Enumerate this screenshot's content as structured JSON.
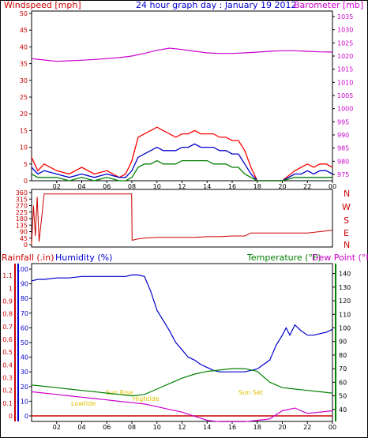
{
  "header": {
    "windspeed_label": "Windspeed [mph]",
    "title": "24 hour graph day : January 19 2012",
    "barometer_label": "Barometer [mb]"
  },
  "lower_header": {
    "rainfall_label": "Rainfall (.in)",
    "humidity_label": "Humidity (%)",
    "temperature_label": "Temperature (°F)",
    "dewpoint_label": "Dew Point (°F)"
  },
  "compass_labels": [
    "N",
    "W",
    "S",
    "E",
    "N"
  ],
  "annotations": {
    "sunrise": "Sun Rise",
    "sunset": "Sun Set",
    "lowtide": "Lowtide",
    "hightide": "Hightide"
  },
  "colors": {
    "wind_gust": "#ff0000",
    "wind_avg": "#0000cc",
    "wind_low": "#008000",
    "barometer": "#cc00cc",
    "direction": "#cc0000",
    "rainfall": "#cc0000",
    "humidity": "#0000cc",
    "temperature": "#008000",
    "dewpoint": "#cc00cc",
    "annotation": "#e0c000"
  },
  "chart_data": [
    {
      "type": "line",
      "name": "wind-barometer",
      "x_ticks": [
        "02",
        "04",
        "06",
        "08",
        "10",
        "12",
        "14",
        "16",
        "18",
        "20",
        "22",
        "00"
      ],
      "y_left_ticks": [
        0,
        5,
        10,
        15,
        20,
        25,
        30,
        35,
        40,
        45,
        50
      ],
      "ylim_left": [
        0,
        50
      ],
      "y_right_ticks": [
        975,
        980,
        985,
        990,
        995,
        1000,
        1005,
        1010,
        1015,
        1020,
        1025,
        1030,
        1035
      ],
      "ylim_right": [
        975,
        1035
      ],
      "xlim": [
        0,
        24
      ],
      "series": [
        {
          "name": "Windspeed gust",
          "axis": "left",
          "x": [
            0,
            0.5,
            1,
            2,
            3,
            4,
            5,
            6,
            7,
            7.5,
            8,
            8.5,
            9,
            9.5,
            10,
            10.5,
            11,
            11.5,
            12,
            12.5,
            13,
            13.5,
            14,
            14.5,
            15,
            15.5,
            16,
            16.5,
            17,
            17.5,
            18,
            19,
            20,
            21,
            21.5,
            22,
            22.5,
            23,
            23.5,
            24
          ],
          "y": [
            7,
            3,
            5,
            3,
            2,
            4,
            2,
            3,
            1,
            2,
            6,
            13,
            14,
            15,
            16,
            15,
            14,
            13,
            14,
            14,
            15,
            14,
            14,
            14,
            13,
            13,
            12,
            12,
            9,
            4,
            0,
            0,
            0,
            3,
            4,
            5,
            4,
            5,
            5,
            4
          ]
        },
        {
          "name": "Windspeed average",
          "axis": "left",
          "x": [
            0,
            0.5,
            1,
            2,
            3,
            4,
            5,
            6,
            7,
            7.5,
            8,
            8.5,
            9,
            9.5,
            10,
            10.5,
            11,
            11.5,
            12,
            12.5,
            13,
            13.5,
            14,
            14.5,
            15,
            15.5,
            16,
            16.5,
            17,
            17.5,
            18,
            19,
            20,
            21,
            21.5,
            22,
            22.5,
            23,
            23.5,
            24
          ],
          "y": [
            4,
            2,
            3,
            2,
            1,
            2,
            1,
            2,
            1,
            1,
            3,
            7,
            8,
            9,
            10,
            9,
            9,
            9,
            10,
            10,
            11,
            10,
            10,
            10,
            9,
            9,
            8,
            8,
            5,
            2,
            0,
            0,
            0,
            2,
            2,
            3,
            2,
            3,
            3,
            2
          ]
        },
        {
          "name": "Windspeed low",
          "axis": "left",
          "x": [
            0,
            0.5,
            1,
            2,
            3,
            4,
            5,
            6,
            7,
            7.5,
            8,
            8.5,
            9,
            9.5,
            10,
            10.5,
            11,
            11.5,
            12,
            12.5,
            13,
            13.5,
            14,
            14.5,
            15,
            15.5,
            16,
            16.5,
            17,
            17.5,
            18,
            19,
            20,
            21,
            21.5,
            22,
            22.5,
            23,
            23.5,
            24
          ],
          "y": [
            2,
            1,
            1,
            1,
            0,
            1,
            0,
            1,
            0,
            0,
            1,
            4,
            5,
            5,
            6,
            5,
            5,
            5,
            6,
            6,
            6,
            6,
            6,
            5,
            5,
            5,
            4,
            4,
            2,
            1,
            0,
            0,
            0,
            1,
            1,
            1,
            1,
            1,
            1,
            1
          ]
        },
        {
          "name": "Barometer",
          "axis": "right",
          "x": [
            0,
            1,
            2,
            3,
            4,
            5,
            6,
            7,
            8,
            9,
            10,
            11,
            12,
            13,
            14,
            15,
            16,
            17,
            18,
            19,
            20,
            21,
            22,
            23,
            24
          ],
          "y": [
            1019,
            1018.5,
            1018,
            1018.2,
            1018.4,
            1018.7,
            1019,
            1019.4,
            1020,
            1021,
            1022.2,
            1023,
            1022.5,
            1021.8,
            1021.2,
            1021,
            1021,
            1021.2,
            1021.5,
            1021.8,
            1022,
            1022,
            1021.8,
            1021.6,
            1021.5
          ]
        }
      ]
    },
    {
      "type": "line",
      "name": "wind-direction",
      "x_ticks": [
        "02",
        "04",
        "06",
        "08",
        "10",
        "12",
        "14",
        "16",
        "18",
        "20",
        "22",
        "00"
      ],
      "y_ticks": [
        0,
        45,
        90,
        135,
        180,
        225,
        270,
        315,
        360
      ],
      "ylim": [
        0,
        360
      ],
      "xlim": [
        0,
        24
      ],
      "series": [
        {
          "name": "Direction",
          "x": [
            0,
            0.15,
            0.3,
            0.45,
            0.6,
            1,
            2,
            3,
            4,
            5,
            6,
            7,
            7.98,
            8.02,
            8.5,
            9,
            10,
            11,
            12,
            13,
            14,
            15,
            16,
            17,
            17.5,
            18,
            19,
            20,
            21,
            22,
            23,
            24
          ],
          "y": [
            0,
            270,
            60,
            330,
            20,
            350,
            350,
            350,
            350,
            350,
            350,
            350,
            350,
            30,
            40,
            45,
            50,
            50,
            50,
            50,
            55,
            55,
            60,
            60,
            80,
            80,
            80,
            80,
            80,
            80,
            90,
            100
          ]
        }
      ]
    },
    {
      "type": "line",
      "name": "rain-humidity-temp",
      "x_ticks": [
        "02",
        "04",
        "06",
        "08",
        "10",
        "12",
        "14",
        "16",
        "18",
        "20",
        "22",
        "00"
      ],
      "y_left_outer_ticks": [
        0,
        0.1,
        0.2,
        0.3,
        0.4,
        0.5,
        0.6,
        0.7,
        0.8,
        0.9,
        1,
        1.1
      ],
      "ylim_left_outer": [
        0,
        1.2
      ],
      "y_left_inner_ticks": [
        0,
        10,
        20,
        30,
        40,
        50,
        60,
        70,
        80,
        90,
        100
      ],
      "ylim_left_inner": [
        0,
        100
      ],
      "y_right_ticks": [
        40,
        50,
        60,
        70,
        80,
        90,
        100,
        110,
        120,
        130,
        140
      ],
      "ylim_right": [
        30,
        145
      ],
      "xlim": [
        0,
        24
      ],
      "series": [
        {
          "name": "Rainfall",
          "axis": "left_outer",
          "x": [
            0,
            24
          ],
          "y": [
            0,
            0
          ]
        },
        {
          "name": "Humidity",
          "axis": "left_inner",
          "x": [
            0,
            0.5,
            1,
            2,
            3,
            4,
            5,
            6,
            7,
            7.5,
            8,
            8.5,
            9,
            9.5,
            10,
            10.5,
            11,
            11.5,
            12,
            12.5,
            13,
            13.5,
            14,
            14.5,
            15,
            15.5,
            16,
            16.5,
            17,
            17.5,
            18,
            18.5,
            19,
            19.5,
            20,
            20.3,
            20.6,
            21,
            21.5,
            22,
            22.5,
            23,
            23.5,
            24
          ],
          "y": [
            92,
            93,
            93,
            94,
            94,
            95,
            95,
            95,
            95,
            95,
            96,
            96,
            95,
            85,
            72,
            65,
            58,
            50,
            45,
            40,
            38,
            35,
            33,
            31,
            30,
            30,
            30,
            30,
            30,
            31,
            32,
            35,
            38,
            48,
            55,
            60,
            55,
            62,
            58,
            55,
            55,
            56,
            57,
            59
          ]
        },
        {
          "name": "Temperature",
          "axis": "right",
          "x": [
            0,
            1,
            2,
            3,
            4,
            5,
            6,
            7,
            8,
            9,
            10,
            11,
            12,
            13,
            14,
            15,
            16,
            17,
            18,
            19,
            20,
            21,
            22,
            23,
            24
          ],
          "y": [
            58,
            57,
            56,
            55,
            54,
            53,
            52,
            51,
            50,
            51,
            55,
            59,
            63,
            66,
            68,
            69,
            70,
            70,
            68,
            60,
            56,
            55,
            54,
            53,
            52
          ]
        },
        {
          "name": "Dew Point",
          "axis": "right",
          "x": [
            0,
            1,
            2,
            3,
            4,
            5,
            6,
            7,
            8,
            9,
            10,
            11,
            12,
            13,
            14,
            15,
            16,
            17,
            18,
            19,
            20,
            21,
            22,
            23,
            24
          ],
          "y": [
            53,
            52,
            51,
            50,
            49,
            48,
            47,
            46,
            45,
            44,
            42,
            40,
            38,
            35,
            32,
            31,
            31,
            31,
            32,
            33,
            39,
            41,
            37,
            38,
            39
          ]
        }
      ]
    }
  ]
}
